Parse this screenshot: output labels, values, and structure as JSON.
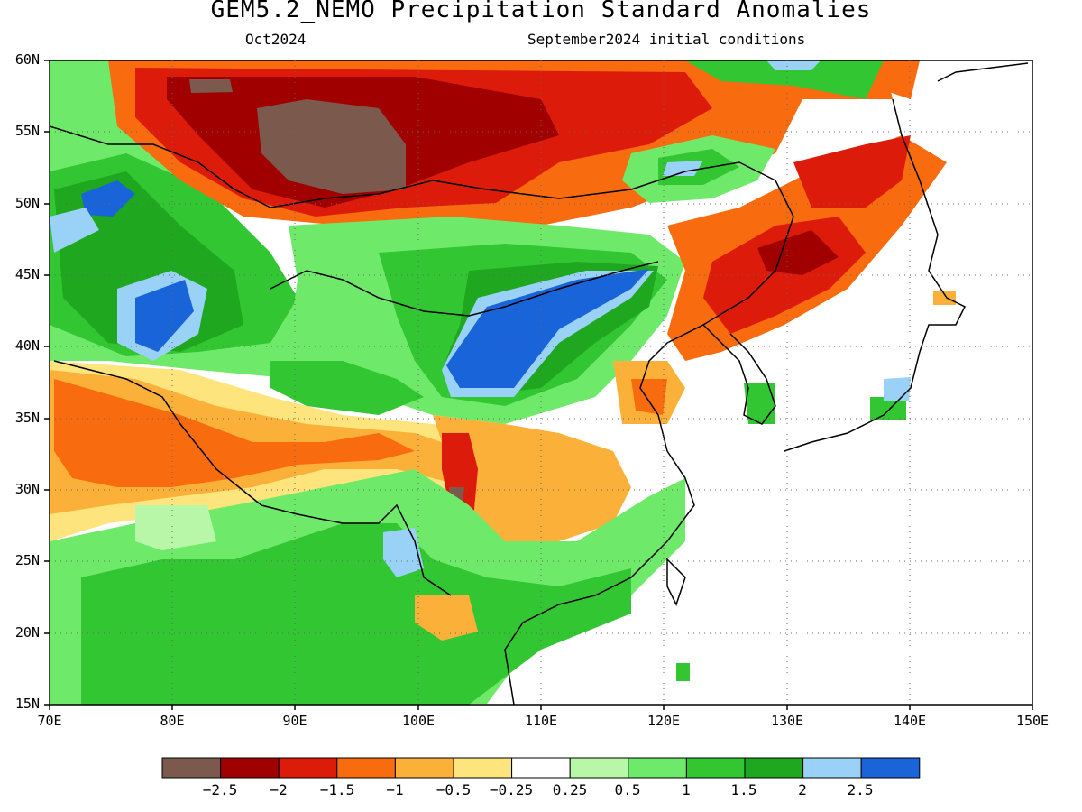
{
  "title": "GEM5.2_NEMO Precipitation Standard Anomalies",
  "subtitle_left": "Oct2024",
  "subtitle_right": "September2024 initial conditions",
  "axes": {
    "x_ticks": [
      "70E",
      "80E",
      "90E",
      "100E",
      "110E",
      "120E",
      "130E",
      "140E",
      "150E"
    ],
    "y_ticks": [
      "60N",
      "55N",
      "50N",
      "45N",
      "40N",
      "35N",
      "30N",
      "25N",
      "20N",
      "15N"
    ],
    "lon_range": [
      70,
      150
    ],
    "lat_range": [
      15,
      60
    ],
    "grid": "dotted"
  },
  "colorbar": {
    "labels": [
      "−2.5",
      "−2",
      "−1.5",
      "−1",
      "−0.5",
      "−0.25",
      "0.25",
      "0.5",
      "1",
      "1.5",
      "2",
      "2.5"
    ],
    "colors": [
      "#7b5a4d",
      "#a00000",
      "#dd1b0a",
      "#f86b0f",
      "#fbb03a",
      "#fde47c",
      "#ffffff",
      "#b9f7a8",
      "#6fe96a",
      "#33c633",
      "#1fa71f",
      "#99d1f7",
      "#1864d8"
    ]
  },
  "map_regions": [
    {
      "label": "brown",
      "color": "#7b5a4d"
    },
    {
      "label": "dark-red",
      "color": "#a00000"
    },
    {
      "label": "red",
      "color": "#dd1b0a"
    },
    {
      "label": "orange",
      "color": "#f86b0f"
    },
    {
      "label": "light-orange",
      "color": "#fbb03a"
    },
    {
      "label": "yellow",
      "color": "#fde47c"
    },
    {
      "label": "light-green",
      "color": "#b9f7a8"
    },
    {
      "label": "green",
      "color": "#6fe96a"
    },
    {
      "label": "mid-green",
      "color": "#33c633"
    },
    {
      "label": "dark-green",
      "color": "#1fa71f"
    },
    {
      "label": "light-blue",
      "color": "#99d1f7"
    },
    {
      "label": "blue",
      "color": "#1864d8"
    }
  ]
}
